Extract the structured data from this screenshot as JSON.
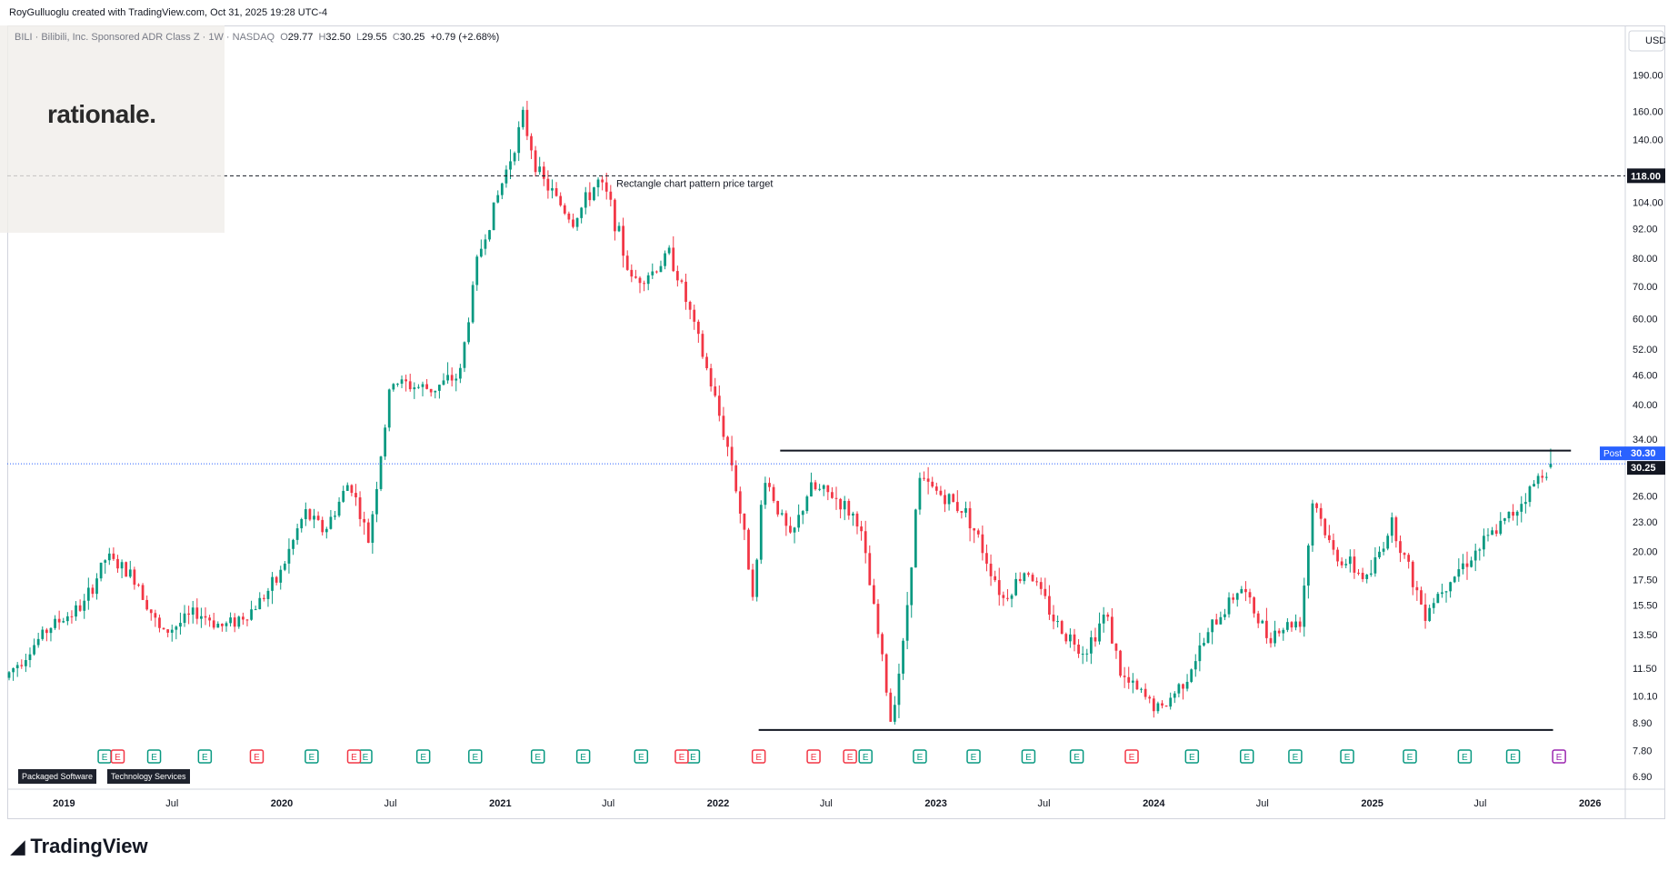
{
  "header": {
    "attribution": "RoyGulluoglu created with TradingView.com, Oct 31, 2025 19:28 UTC-4"
  },
  "symbol": {
    "name": "BILI · Bilibili, Inc. Sponsored ADR Class Z · 1W · NASDAQ",
    "open_label": "O",
    "open": "29.77",
    "high_label": "H",
    "high": "32.50",
    "low_label": "L",
    "low": "29.55",
    "close_label": "C",
    "close": "30.25",
    "change": "+0.79 (+2.68%)"
  },
  "watermark": {
    "text": "rationale."
  },
  "footer": {
    "brand": "TradingView"
  },
  "sector_tags": [
    "Packaged Software",
    "Technology Services"
  ],
  "colors": {
    "up": "#089981",
    "down": "#f23645",
    "line": "#131722",
    "price_line": "#2962ff",
    "event_purple": "#9c27b0"
  },
  "chart_data": {
    "type": "candlestick",
    "currency": "USD",
    "scale": "log",
    "ylim": [
      6.5,
      230
    ],
    "xlim": [
      "2018-10-01",
      "2026-03-01"
    ],
    "y_ticks": [
      "190.00",
      "160.00",
      "140.00",
      "118.00",
      "104.00",
      "92.00",
      "80.00",
      "70.00",
      "60.00",
      "52.00",
      "46.00",
      "40.00",
      "34.00",
      "30.30",
      "30.25",
      "26.00",
      "23.00",
      "20.00",
      "17.50",
      "15.50",
      "13.50",
      "11.50",
      "10.10",
      "8.90",
      "7.80",
      "6.90"
    ],
    "x_ticks": [
      "2019",
      "Jul",
      "2020",
      "Jul",
      "2021",
      "Jul",
      "2022",
      "Jul",
      "2023",
      "Jul",
      "2024",
      "Jul",
      "2025",
      "Jul",
      "2026"
    ],
    "x_tick_dates": [
      "2019-01-01",
      "2019-07-01",
      "2020-01-01",
      "2020-07-01",
      "2021-01-01",
      "2021-07-01",
      "2022-01-01",
      "2022-07-01",
      "2023-01-01",
      "2023-07-01",
      "2024-01-01",
      "2024-07-01",
      "2025-01-01",
      "2025-07-01",
      "2026-01-01"
    ],
    "price_path": [
      [
        "2018-10-01",
        11.0
      ],
      [
        "2018-12-15",
        14.0
      ],
      [
        "2019-02-10",
        15.5
      ],
      [
        "2019-03-20",
        19.5
      ],
      [
        "2019-05-10",
        17.5
      ],
      [
        "2019-06-20",
        13.5
      ],
      [
        "2019-08-20",
        15.0
      ],
      [
        "2019-10-01",
        14.0
      ],
      [
        "2019-11-15",
        15.0
      ],
      [
        "2020-01-01",
        17.5
      ],
      [
        "2020-02-15",
        24.0
      ],
      [
        "2020-03-20",
        22.0
      ],
      [
        "2020-05-01",
        28.0
      ],
      [
        "2020-06-01",
        21.0
      ],
      [
        "2020-07-10",
        45.0
      ],
      [
        "2020-08-01",
        44.0
      ],
      [
        "2020-09-15",
        43.0
      ],
      [
        "2020-11-01",
        46.0
      ],
      [
        "2020-12-01",
        80.0
      ],
      [
        "2021-01-15",
        118.0
      ],
      [
        "2021-02-15",
        155.0
      ],
      [
        "2021-03-15",
        118.0
      ],
      [
        "2021-05-10",
        95.0
      ],
      [
        "2021-06-20",
        115.0
      ],
      [
        "2021-07-10",
        105.0
      ],
      [
        "2021-08-15",
        72.0
      ],
      [
        "2021-09-20",
        75.0
      ],
      [
        "2021-10-20",
        82.0
      ],
      [
        "2021-11-25",
        60.0
      ],
      [
        "2021-12-25",
        45.0
      ],
      [
        "2022-02-01",
        30.0
      ],
      [
        "2022-03-10",
        16.0
      ],
      [
        "2022-03-25",
        29.0
      ],
      [
        "2022-05-10",
        21.0
      ],
      [
        "2022-06-10",
        27.0
      ],
      [
        "2022-07-20",
        26.0
      ],
      [
        "2022-09-01",
        23.0
      ],
      [
        "2022-10-10",
        12.0
      ],
      [
        "2022-10-24",
        9.0
      ],
      [
        "2022-11-15",
        13.0
      ],
      [
        "2022-12-10",
        28.0
      ],
      [
        "2023-01-20",
        26.0
      ],
      [
        "2023-03-01",
        24.0
      ],
      [
        "2023-05-01",
        16.0
      ],
      [
        "2023-06-10",
        18.5
      ],
      [
        "2023-08-01",
        14.0
      ],
      [
        "2023-09-15",
        12.5
      ],
      [
        "2023-10-20",
        15.0
      ],
      [
        "2023-11-15",
        11.0
      ],
      [
        "2024-01-20",
        9.4
      ],
      [
        "2024-03-01",
        11.0
      ],
      [
        "2024-04-15",
        14.0
      ],
      [
        "2024-06-01",
        17.0
      ],
      [
        "2024-07-15",
        13.5
      ],
      [
        "2024-09-10",
        14.5
      ],
      [
        "2024-10-01",
        26.0
      ],
      [
        "2024-11-01",
        20.0
      ],
      [
        "2025-01-01",
        17.5
      ],
      [
        "2025-02-10",
        23.0
      ],
      [
        "2025-04-05",
        15.0
      ],
      [
        "2025-05-15",
        17.5
      ],
      [
        "2025-07-01",
        20.0
      ],
      [
        "2025-09-01",
        24.0
      ],
      [
        "2025-10-31",
        30.25
      ]
    ],
    "events": {
      "earnings_up": [
        "2019-03-10",
        "2019-06-01",
        "2019-08-25",
        "2020-02-20",
        "2020-05-20",
        "2020-08-25",
        "2020-11-20",
        "2021-03-05",
        "2021-05-20",
        "2021-08-25",
        "2021-11-20",
        "2022-09-05",
        "2022-12-05",
        "2023-03-05",
        "2023-06-05",
        "2023-08-25",
        "2024-03-05",
        "2024-06-05",
        "2024-08-25",
        "2024-11-20",
        "2025-03-05",
        "2025-06-05",
        "2025-08-25"
      ],
      "earnings_down": [
        "2019-04-01",
        "2019-11-20",
        "2020-05-01",
        "2021-11-01",
        "2022-03-10",
        "2022-06-10",
        "2022-08-10",
        "2023-11-25"
      ]
    },
    "annotations": {
      "price_target": {
        "value": 118.0,
        "label": "Rectangle chart pattern price target",
        "axis_label": "118.00"
      },
      "resistance": {
        "value": 32.2,
        "from": "2022-04-15",
        "to": "2025-11-30"
      },
      "support": {
        "value": 8.6,
        "from": "2022-03-10",
        "to": "2025-10-31"
      },
      "current_price": {
        "value": 30.25,
        "axis_label": "30.25"
      },
      "post_price": {
        "value": 30.3,
        "axis_label": "30.30",
        "tag": "Post"
      }
    }
  }
}
